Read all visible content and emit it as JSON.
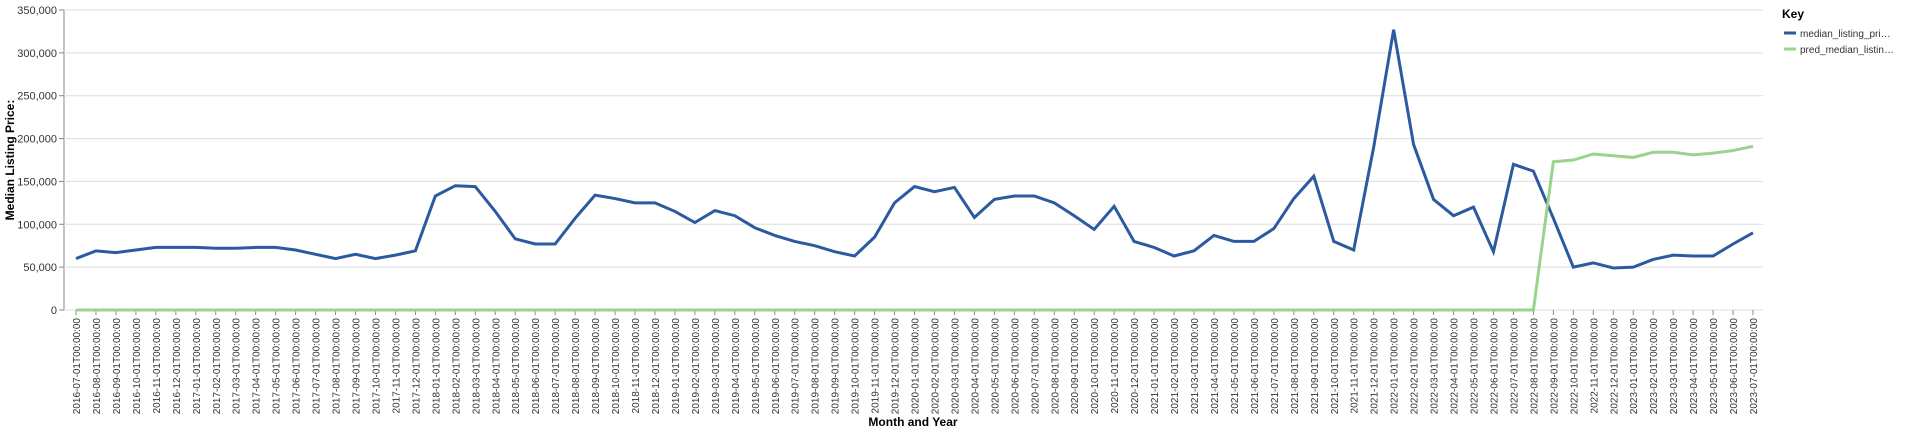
{
  "chart_data": {
    "type": "line",
    "x_label": "Month and Year",
    "y_label": "Median Listing Price:",
    "legend_title": "Key",
    "legend_position": "right",
    "grid": true,
    "categories": [
      "2016-07-01T00:00:00",
      "2016-08-01T00:00:00",
      "2016-09-01T00:00:00",
      "2016-10-01T00:00:00",
      "2016-11-01T00:00:00",
      "2016-12-01T00:00:00",
      "2017-01-01T00:00:00",
      "2017-02-01T00:00:00",
      "2017-03-01T00:00:00",
      "2017-04-01T00:00:00",
      "2017-05-01T00:00:00",
      "2017-06-01T00:00:00",
      "2017-07-01T00:00:00",
      "2017-08-01T00:00:00",
      "2017-09-01T00:00:00",
      "2017-10-01T00:00:00",
      "2017-11-01T00:00:00",
      "2017-12-01T00:00:00",
      "2018-01-01T00:00:00",
      "2018-02-01T00:00:00",
      "2018-03-01T00:00:00",
      "2018-04-01T00:00:00",
      "2018-05-01T00:00:00",
      "2018-06-01T00:00:00",
      "2018-07-01T00:00:00",
      "2018-08-01T00:00:00",
      "2018-09-01T00:00:00",
      "2018-10-01T00:00:00",
      "2018-11-01T00:00:00",
      "2018-12-01T00:00:00",
      "2019-01-01T00:00:00",
      "2019-02-01T00:00:00",
      "2019-03-01T00:00:00",
      "2019-04-01T00:00:00",
      "2019-05-01T00:00:00",
      "2019-06-01T00:00:00",
      "2019-07-01T00:00:00",
      "2019-08-01T00:00:00",
      "2019-09-01T00:00:00",
      "2019-10-01T00:00:00",
      "2019-11-01T00:00:00",
      "2019-12-01T00:00:00",
      "2020-01-01T00:00:00",
      "2020-02-01T00:00:00",
      "2020-03-01T00:00:00",
      "2020-04-01T00:00:00",
      "2020-05-01T00:00:00",
      "2020-06-01T00:00:00",
      "2020-07-01T00:00:00",
      "2020-08-01T00:00:00",
      "2020-09-01T00:00:00",
      "2020-10-01T00:00:00",
      "2020-11-01T00:00:00",
      "2020-12-01T00:00:00",
      "2021-01-01T00:00:00",
      "2021-02-01T00:00:00",
      "2021-03-01T00:00:00",
      "2021-04-01T00:00:00",
      "2021-05-01T00:00:00",
      "2021-06-01T00:00:00",
      "2021-07-01T00:00:00",
      "2021-08-01T00:00:00",
      "2021-09-01T00:00:00",
      "2021-10-01T00:00:00",
      "2021-11-01T00:00:00",
      "2021-12-01T00:00:00",
      "2022-01-01T00:00:00",
      "2022-02-01T00:00:00",
      "2022-03-01T00:00:00",
      "2022-04-01T00:00:00",
      "2022-05-01T00:00:00",
      "2022-06-01T00:00:00",
      "2022-07-01T00:00:00",
      "2022-08-01T00:00:00",
      "2022-09-01T00:00:00",
      "2022-10-01T00:00:00",
      "2022-11-01T00:00:00",
      "2022-12-01T00:00:00",
      "2023-01-01T00:00:00",
      "2023-02-01T00:00:00",
      "2023-03-01T00:00:00",
      "2023-04-01T00:00:00",
      "2023-05-01T00:00:00",
      "2023-06-01T00:00:00",
      "2023-07-01T00:00:00"
    ],
    "series": [
      {
        "name": "median_listing_pri…",
        "color": "#2c5aa0",
        "values": [
          60000,
          69000,
          67000,
          70000,
          73000,
          73000,
          73000,
          72000,
          72000,
          73000,
          73000,
          70000,
          65000,
          60000,
          65000,
          60000,
          64000,
          69000,
          133000,
          145000,
          144000,
          115000,
          83000,
          77000,
          77000,
          107000,
          134000,
          130000,
          125000,
          125000,
          115000,
          102000,
          116000,
          110000,
          96000,
          87000,
          80000,
          75000,
          68000,
          63000,
          85000,
          125000,
          144000,
          138000,
          143000,
          108000,
          129000,
          133000,
          133000,
          125000,
          110000,
          94000,
          121000,
          80000,
          73000,
          63000,
          69000,
          87000,
          80000,
          80000,
          95000,
          130000,
          156000,
          80000,
          70000,
          190000,
          327000,
          193000,
          129000,
          110000,
          120000,
          68000,
          170000,
          162000,
          107000,
          50000,
          55000,
          49000,
          50000,
          59000,
          64000,
          63000,
          63000,
          77000,
          90000
        ]
      },
      {
        "name": "pred_median_listin…",
        "color": "#98d48b",
        "values": [
          0,
          0,
          0,
          0,
          0,
          0,
          0,
          0,
          0,
          0,
          0,
          0,
          0,
          0,
          0,
          0,
          0,
          0,
          0,
          0,
          0,
          0,
          0,
          0,
          0,
          0,
          0,
          0,
          0,
          0,
          0,
          0,
          0,
          0,
          0,
          0,
          0,
          0,
          0,
          0,
          0,
          0,
          0,
          0,
          0,
          0,
          0,
          0,
          0,
          0,
          0,
          0,
          0,
          0,
          0,
          0,
          0,
          0,
          0,
          0,
          0,
          0,
          0,
          0,
          0,
          0,
          0,
          0,
          0,
          0,
          0,
          0,
          0,
          0,
          173000,
          175000,
          182000,
          180000,
          178000,
          184000,
          184000,
          181000,
          183000,
          186000,
          191000
        ]
      }
    ],
    "ylim": [
      0,
      350000
    ],
    "yticks": [
      0,
      {
        "value": 50000,
        "label": "50,000"
      },
      {
        "value": 100000,
        "label": "100,000"
      },
      {
        "value": 150000,
        "label": "150,000"
      },
      {
        "value": 200000,
        "label": "200,000"
      },
      {
        "value": 250000,
        "label": "250,000"
      },
      {
        "value": 300000,
        "label": "300,000"
      },
      {
        "value": 350000,
        "label": "350,000"
      }
    ]
  }
}
